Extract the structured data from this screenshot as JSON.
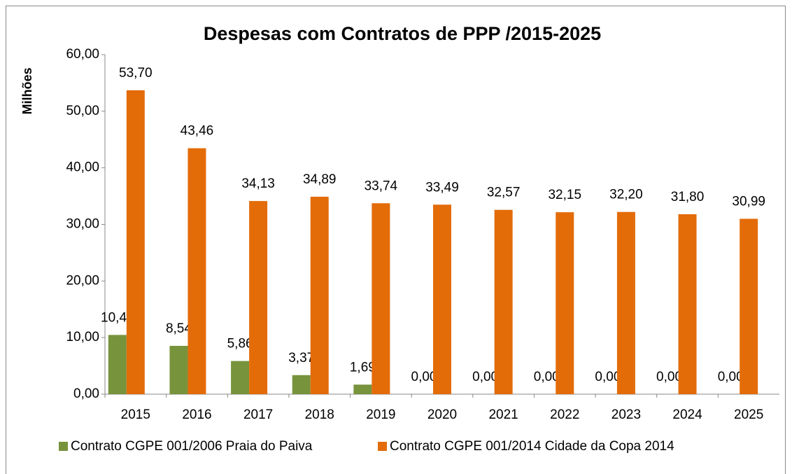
{
  "chart_data": {
    "type": "bar",
    "title": "Despesas com Contratos de PPP /2015-2025",
    "y_label": "Milhões",
    "categories": [
      "2015",
      "2016",
      "2017",
      "2018",
      "2019",
      "2020",
      "2021",
      "2022",
      "2023",
      "2024",
      "2025"
    ],
    "series": [
      {
        "name": "Contrato CGPE 001/2006 Praia do Paiva",
        "color": "#77933c",
        "values": [
          10.47,
          8.54,
          5.86,
          3.37,
          1.69,
          0,
          0,
          0,
          0,
          0,
          0
        ],
        "value_labels": [
          "10,47",
          "8,54",
          "5,86",
          "3,37",
          "1,69",
          "0,00",
          "0,00",
          "0,00",
          "0,00",
          "0,00",
          "0,00"
        ]
      },
      {
        "name": "Contrato CGPE 001/2014 Cidade da Copa 2014",
        "color": "#e36c09",
        "values": [
          53.7,
          43.46,
          34.13,
          34.89,
          33.74,
          33.49,
          32.57,
          32.15,
          32.2,
          31.8,
          30.99
        ],
        "value_labels": [
          "53,70",
          "43,46",
          "34,13",
          "34,89",
          "33,74",
          "33,49",
          "32,57",
          "32,15",
          "32,20",
          "31,80",
          "30,99"
        ]
      }
    ],
    "ylim": [
      0,
      60
    ],
    "yticks": [
      {
        "value": 0,
        "label": "0,00"
      },
      {
        "value": 10,
        "label": "10,00"
      },
      {
        "value": 20,
        "label": "20,00"
      },
      {
        "value": 30,
        "label": "30,00"
      },
      {
        "value": 40,
        "label": "40,00"
      },
      {
        "value": 50,
        "label": "50,00"
      },
      {
        "value": 60,
        "label": "60,00"
      }
    ],
    "legend": "bottom"
  }
}
